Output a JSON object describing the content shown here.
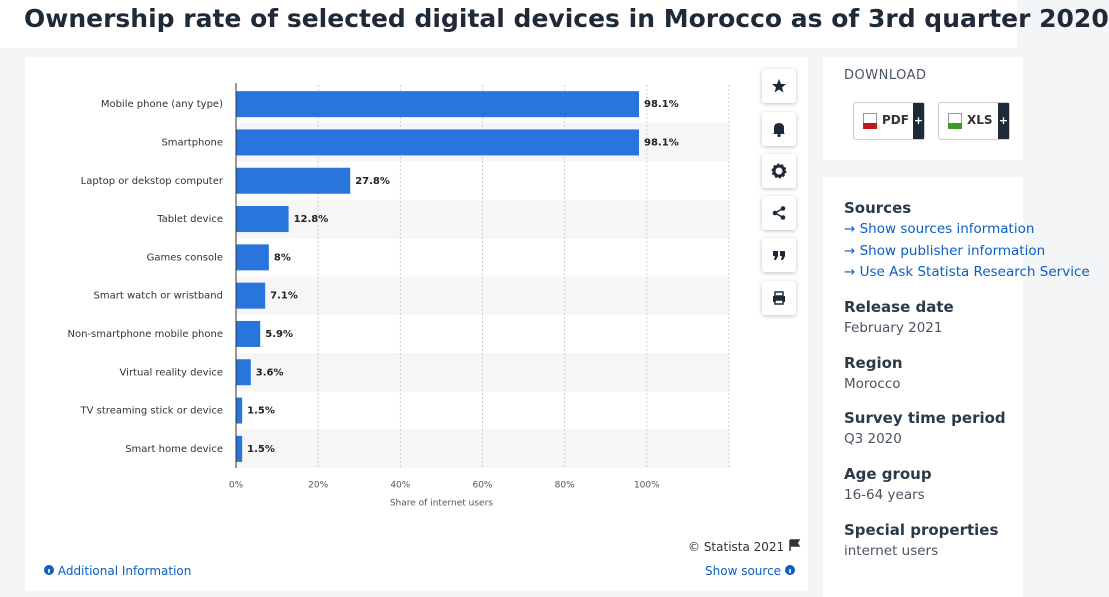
{
  "page_title": "Ownership rate of selected digital devices in Morocco as of 3rd quarter 2020",
  "chart_data": {
    "type": "hbar",
    "categories": [
      "Mobile phone (any type)",
      "Smartphone",
      "Laptop or dekstop computer",
      "Tablet device",
      "Games console",
      "Smart watch or wristband",
      "Non-smartphone mobile phone",
      "Virtual reality device",
      "TV streaming stick or device",
      "Smart home device"
    ],
    "values": [
      98.1,
      98.1,
      27.8,
      12.8,
      8,
      7.1,
      5.9,
      3.6,
      1.5,
      1.5
    ],
    "value_labels": [
      "98.1%",
      "98.1%",
      "27.8%",
      "12.8%",
      "8%",
      "7.1%",
      "5.9%",
      "3.6%",
      "1.5%",
      "1.5%"
    ],
    "color": "#2876dd",
    "xlim": [
      0,
      120
    ],
    "xticks": [
      {
        "value": 0,
        "label": "0%"
      },
      {
        "value": 20,
        "label": "20%"
      },
      {
        "value": 40,
        "label": "40%"
      },
      {
        "value": 60,
        "label": "60%"
      },
      {
        "value": 80,
        "label": "80%"
      },
      {
        "value": 100,
        "label": "100%"
      }
    ],
    "x_label": "Share of internet users",
    "grid": true
  },
  "footer": {
    "copyright": "© Statista 2021",
    "additional": "Additional Information",
    "show_source": "Show source"
  },
  "download": {
    "title": "DOWNLOAD",
    "buttons": [
      "PDF",
      "XLS"
    ]
  },
  "details": {
    "sources_title": "Sources",
    "links": [
      "Show sources information",
      "Show publisher information",
      "Use Ask Statista Research Service"
    ],
    "items": [
      {
        "label": "Release date",
        "value": "February 2021"
      },
      {
        "label": "Region",
        "value": "Morocco"
      },
      {
        "label": "Survey time period",
        "value": "Q3 2020"
      },
      {
        "label": "Age group",
        "value": "16-64 years"
      },
      {
        "label": "Special properties",
        "value": "internet users"
      }
    ]
  }
}
